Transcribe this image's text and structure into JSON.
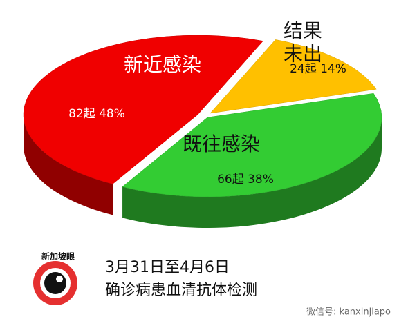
{
  "chart_data": {
    "type": "pie",
    "categories": [
      "结果\n未出",
      "既往感染",
      "新近感染"
    ],
    "values": [
      14,
      38,
      48
    ],
    "value_labels": [
      "24起 14%",
      "66起 38%",
      "82起 48%"
    ],
    "colors": [
      "#ffc000",
      "#33cc33",
      "#f00000"
    ],
    "title": "3月31日至4月6日",
    "subtitle": "确诊病患血清抗体检测"
  },
  "logo": "新加坡眼",
  "watermark": "微信号: kanxinjiapo"
}
